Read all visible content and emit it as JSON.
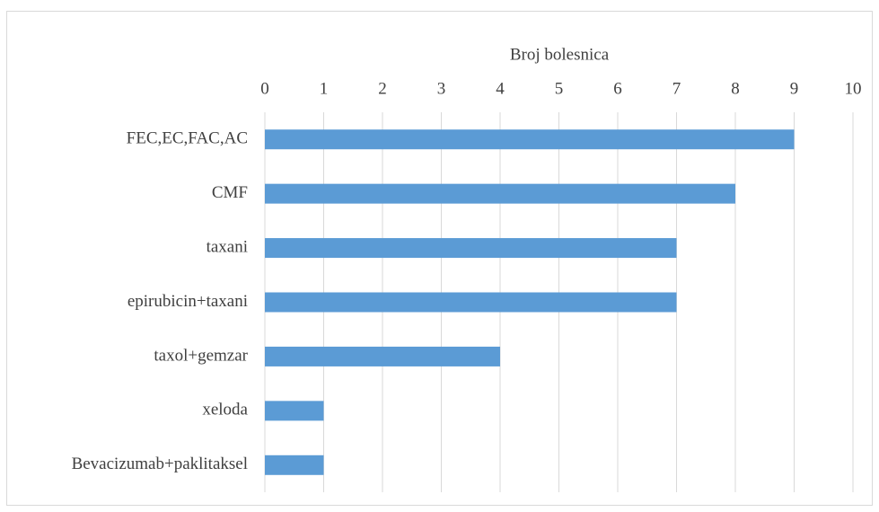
{
  "chart_data": {
    "type": "bar",
    "xlabel": "Broj bolesnica",
    "categories": [
      "FEC,EC,FAC,AC",
      "CMF",
      "taxani",
      "epirubicin+taxani",
      "taxol+gemzar",
      "xeloda",
      "Bevacizumab+paklitaksel"
    ],
    "values": [
      9,
      8,
      7,
      7,
      4,
      1,
      1
    ],
    "color": "#5b9bd5",
    "xlim": [
      0,
      10
    ],
    "xticks": [
      0,
      1,
      2,
      3,
      4,
      5,
      6,
      7,
      8,
      9,
      10
    ],
    "grid": true
  }
}
